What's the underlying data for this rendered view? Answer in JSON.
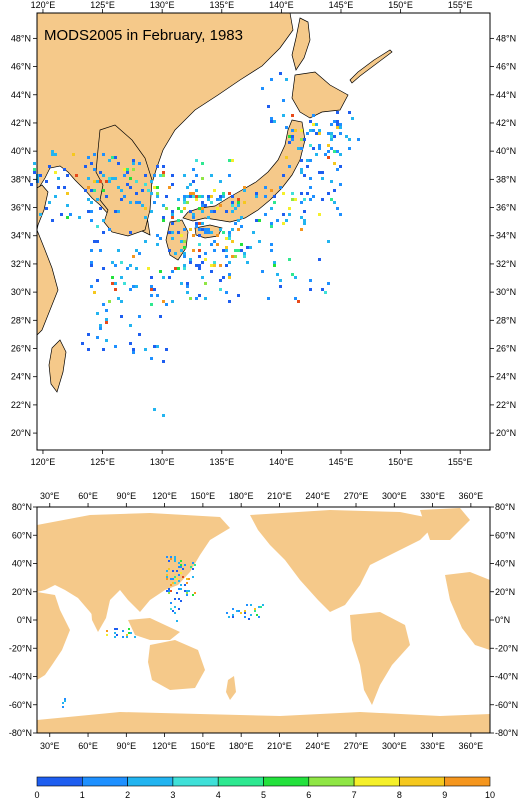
{
  "map_top": {
    "title": "MODS2005 in February, 1983",
    "lon_ticks": [
      "120°E",
      "125°E",
      "130°E",
      "135°E",
      "140°E",
      "145°E",
      "150°E",
      "155°E"
    ],
    "lat_ticks": [
      "48°N",
      "46°N",
      "44°N",
      "42°N",
      "40°N",
      "38°N",
      "36°N",
      "34°N",
      "32°N",
      "30°N",
      "28°N",
      "26°N",
      "24°N",
      "22°N",
      "20°N"
    ],
    "lon_range": [
      119.5,
      157.5
    ],
    "lat_range": [
      18.8,
      49.8
    ]
  },
  "map_bottom": {
    "lon_ticks": [
      "30°E",
      "60°E",
      "90°E",
      "120°E",
      "150°E",
      "180°E",
      "210°E",
      "240°E",
      "270°E",
      "300°E",
      "330°E",
      "360°E"
    ],
    "lat_ticks": [
      "80°N",
      "60°N",
      "40°N",
      "20°N",
      "0°N",
      "-20°N",
      "-40°N",
      "-60°N",
      "-80°N"
    ],
    "lon_range": [
      20,
      375
    ],
    "lat_range": [
      -80,
      80
    ]
  },
  "colorbar": {
    "labels": [
      "0",
      "1",
      "2",
      "3",
      "4",
      "5",
      "6",
      "7",
      "8",
      "9",
      "10"
    ],
    "colors": [
      "#1e5ef0",
      "#1e90ff",
      "#22b4f0",
      "#3fe0d8",
      "#2ee890",
      "#23e13c",
      "#8fe645",
      "#f5f02a",
      "#f5c81e",
      "#f5961e",
      "#e84a1a"
    ]
  },
  "colors": {
    "land": "#f5c98a",
    "ocean": "#ffffff",
    "coast": "#000000"
  }
}
